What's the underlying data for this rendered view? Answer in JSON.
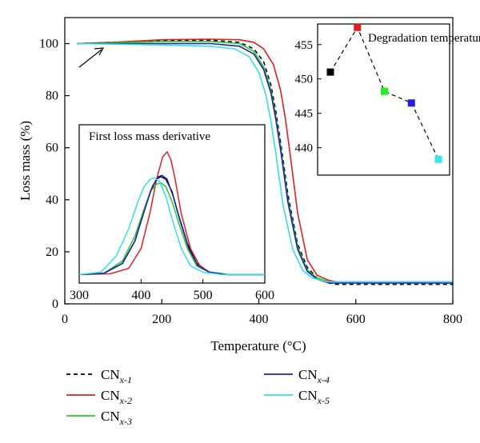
{
  "chart_data": [
    {
      "type": "line",
      "xlabel": "Temperature (°C)",
      "ylabel": "Loss mass (%)",
      "xlim": [
        0,
        800
      ],
      "ylim": [
        0,
        110
      ],
      "xticks": [
        0,
        200,
        400,
        600,
        800
      ],
      "yticks": [
        0,
        20,
        40,
        60,
        80,
        100
      ],
      "grid": false,
      "legend_position": "bottom",
      "series": [
        {
          "name": "CN",
          "sub": "x-1",
          "color": "#000000",
          "dash": "dashed",
          "x": [
            25,
            100,
            200,
            300,
            360,
            390,
            410,
            425,
            435,
            445,
            460,
            480,
            500,
            520,
            545,
            560,
            600,
            700,
            800
          ],
          "y": [
            100,
            100.5,
            101.2,
            101.3,
            100.5,
            98,
            93,
            84,
            74,
            62,
            42,
            23,
            14,
            10,
            8,
            7.5,
            7.5,
            7.5,
            7.5
          ]
        },
        {
          "name": "CN",
          "sub": "x-2",
          "color": "#e02020",
          "dash": "solid",
          "x": [
            25,
            100,
            200,
            300,
            360,
            390,
            410,
            430,
            445,
            455,
            465,
            480,
            500,
            520,
            545,
            560,
            600,
            700,
            800
          ],
          "y": [
            100,
            100.5,
            101.5,
            101.7,
            101.5,
            100.5,
            98,
            92,
            82,
            71,
            57,
            35,
            17,
            11,
            9,
            8.5,
            8.5,
            8.5,
            8.5
          ]
        },
        {
          "name": "CN",
          "sub": "x-3",
          "color": "#22cc22",
          "dash": "solid",
          "x": [
            25,
            100,
            200,
            300,
            360,
            390,
            410,
            425,
            435,
            445,
            460,
            480,
            500,
            520,
            545,
            560,
            600,
            700,
            800
          ],
          "y": [
            100,
            100.3,
            100.8,
            100.8,
            100,
            97,
            91,
            82,
            72,
            60,
            40,
            22,
            13,
            10,
            8.5,
            8.5,
            8.5,
            8.5,
            8.5
          ]
        },
        {
          "name": "CN",
          "sub": "x-4",
          "color": "#1f1fb8",
          "dash": "solid",
          "x": [
            25,
            100,
            200,
            300,
            360,
            390,
            410,
            425,
            435,
            445,
            460,
            480,
            500,
            520,
            545,
            560,
            600,
            700,
            800
          ],
          "y": [
            100,
            100,
            100,
            100,
            99,
            96,
            90,
            81,
            71,
            59,
            39,
            21,
            12.5,
            9.5,
            8,
            8,
            8,
            8,
            8
          ]
        },
        {
          "name": "CN",
          "sub": "x-5",
          "color": "#33e0e8",
          "dash": "solid",
          "x": [
            25,
            100,
            200,
            300,
            350,
            380,
            400,
            415,
            425,
            435,
            450,
            470,
            490,
            510,
            540,
            560,
            600,
            700,
            800
          ],
          "y": [
            100,
            99.8,
            99.5,
            99,
            98,
            95,
            89,
            80,
            70,
            58,
            38,
            21,
            13,
            10,
            8.5,
            8.5,
            8.5,
            8.5,
            8.5
          ]
        }
      ]
    },
    {
      "type": "line",
      "title": "First loss mass derivative",
      "xlim": [
        300,
        600
      ],
      "xticks": [
        300,
        400,
        500,
        600
      ],
      "series": [
        {
          "sub": "x-1",
          "color": "#000000",
          "x": [
            300,
            340,
            370,
            390,
            405,
            415,
            425,
            432,
            440,
            450,
            460,
            475,
            490,
            510,
            540,
            600
          ],
          "y": [
            1.5,
            2,
            6,
            15,
            27,
            35,
            40,
            41,
            40,
            35,
            26,
            14,
            6,
            2.5,
            1.5,
            1.5
          ]
        },
        {
          "sub": "x-2",
          "color": "#e02020",
          "x": [
            300,
            350,
            380,
            400,
            415,
            425,
            435,
            442,
            448,
            455,
            465,
            480,
            495,
            510,
            540,
            600
          ],
          "y": [
            1.5,
            1.8,
            4,
            12,
            27,
            40,
            49,
            51,
            48,
            40,
            26,
            12,
            5,
            2.5,
            1.5,
            1.5
          ]
        },
        {
          "sub": "x-3",
          "color": "#22cc22",
          "x": [
            300,
            340,
            370,
            390,
            405,
            415,
            425,
            432,
            440,
            450,
            460,
            475,
            490,
            510,
            540,
            600
          ],
          "y": [
            1.5,
            2,
            7,
            17,
            28,
            35,
            38,
            38.5,
            37,
            31,
            23,
            12,
            5,
            2.5,
            1.5,
            1.5
          ]
        },
        {
          "sub": "x-4",
          "color": "#1f1fb8",
          "x": [
            300,
            340,
            370,
            390,
            405,
            418,
            428,
            434,
            442,
            452,
            462,
            477,
            492,
            510,
            540,
            600
          ],
          "y": [
            1.5,
            2,
            6,
            15,
            27,
            37,
            41,
            41.5,
            40,
            33,
            24,
            12,
            5,
            2.5,
            1.5,
            1.5
          ]
        },
        {
          "sub": "x-5",
          "color": "#33e0e8",
          "x": [
            300,
            335,
            360,
            380,
            395,
            405,
            415,
            422,
            430,
            440,
            450,
            465,
            480,
            500,
            530,
            600
          ],
          "y": [
            1.5,
            2.5,
            9,
            20,
            31,
            37,
            40,
            40.5,
            39,
            33,
            24,
            12,
            5,
            2.5,
            1.5,
            1.5
          ]
        }
      ]
    },
    {
      "type": "scatter",
      "title": "Degradation temperature",
      "ylim": [
        436,
        458
      ],
      "yticks": [
        440,
        445,
        450,
        455
      ],
      "points": [
        {
          "sub": "x-1",
          "color": "#000000",
          "y": 451
        },
        {
          "sub": "x-2",
          "color": "#e02020",
          "y": 457.5
        },
        {
          "sub": "x-3",
          "color": "#22ee22",
          "y": 448.2
        },
        {
          "sub": "x-4",
          "color": "#1f1fdd",
          "y": 446.5
        },
        {
          "sub": "x-5",
          "color": "#33e8f0",
          "y": 438.3
        }
      ]
    }
  ]
}
